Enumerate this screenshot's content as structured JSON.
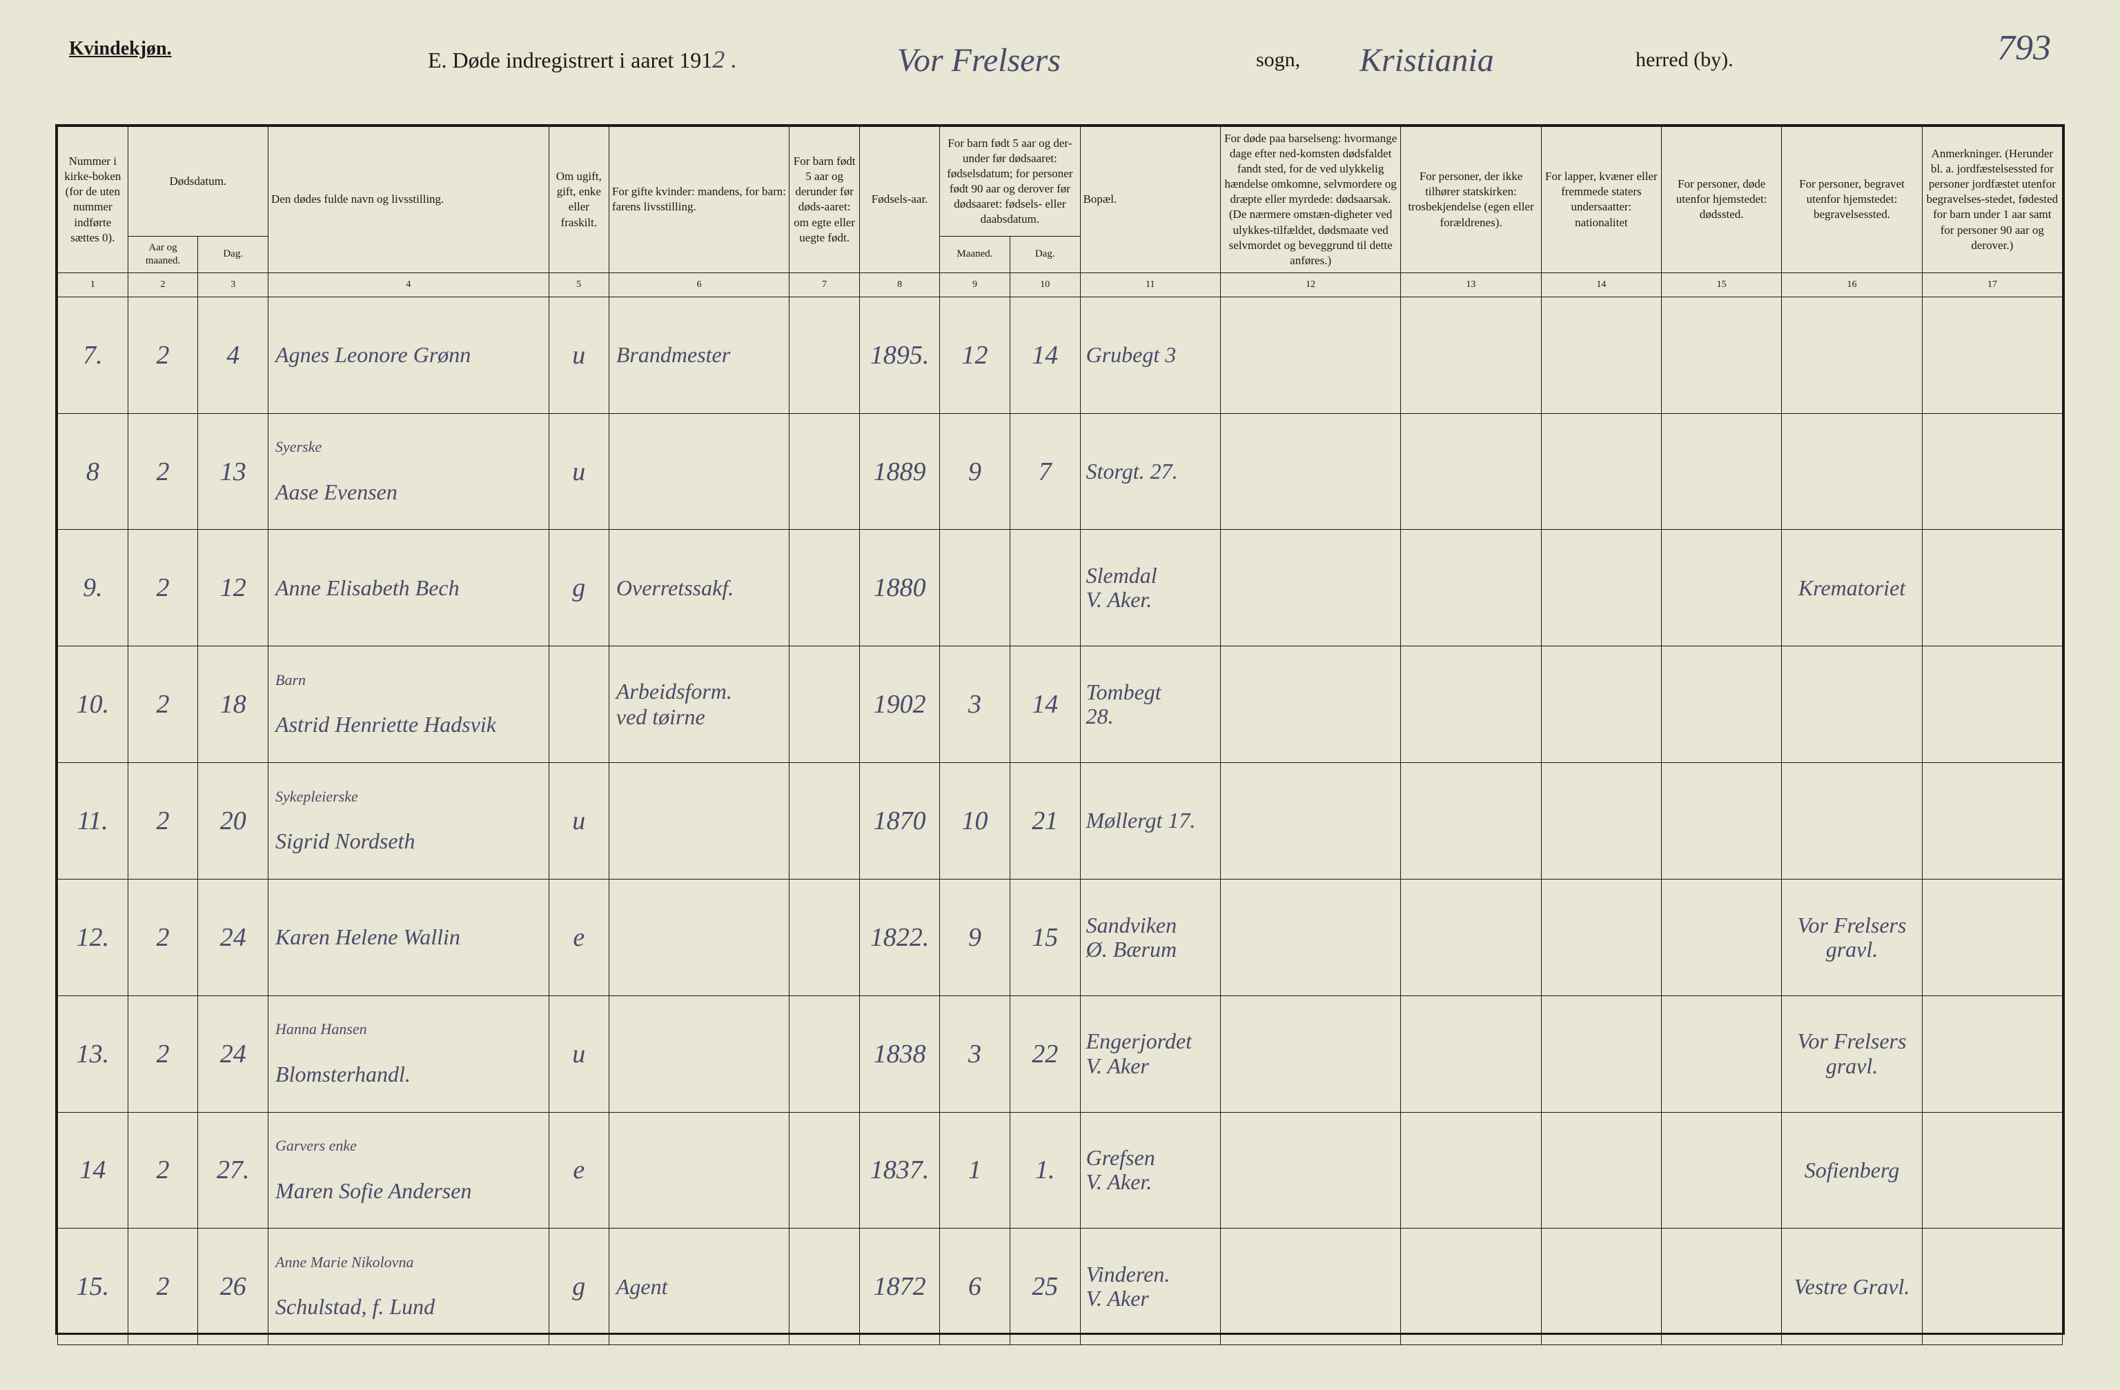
{
  "header": {
    "gender_label": "Kvindekjøn.",
    "title_prefix": "E.  Døde indregistrert i aaret 191",
    "year_suffix": "2 .",
    "sogn": "Vor Frelsers",
    "sogn_label": "sogn,",
    "herred": "Kristiania",
    "herred_label": "herred (by).",
    "page_number": "793"
  },
  "columns": {
    "num": "Nummer i kirke-boken (for de uten nummer indførte sættes 0).",
    "date": "Dødsdatum.",
    "date_year": "Aar og maaned.",
    "date_day": "Dag.",
    "name": "Den dødes fulde navn og livsstilling.",
    "marital": "Om ugift, gift, enke eller fraskilt.",
    "spouse": "For gifte kvinder: mandens, for barn: farens livsstilling.",
    "under5": "For barn født 5 aar og derunder før døds-aaret: om egte eller uegte født.",
    "birthyear": "Fødsels-aar.",
    "age": "For barn født 5 aar og der-under før dødsaaret: fødselsdatum; for personer født 90 aar og derover før dødsaaret: fødsels- eller daabsdatum.",
    "age_month": "Maaned.",
    "age_day": "Dag.",
    "residence": "Bopæl.",
    "cause": "For døde paa barselseng: hvormange dage efter ned-komsten dødsfaldet fandt sted, for de ved ulykkelig hændelse omkomne, selvmordere og dræpte eller myrdede: dødsaarsak. (De nærmere omstæn-digheter ved ulykkes-tilfældet, dødsmaate ved selvmordet og beveggrund til dette anføres.)",
    "church": "For personer, der ikke tilhører statskirken: trosbekjendelse (egen eller forældrenes).",
    "nationality": "For lapper, kvæner eller fremmede staters undersaatter: nationalitet",
    "deathplace": "For personer, døde utenfor hjemstedet: dødssted.",
    "burialplace": "For personer, begravet utenfor hjemstedet: begravelsessted.",
    "remarks": "Anmerkninger. (Herunder bl. a. jordfæstelsessted for personer jordfæstet utenfor begravelses-stedet, fødested for barn under 1 aar samt for personer 90 aar og derover.)"
  },
  "column_numbers": [
    "1",
    "2",
    "3",
    "4",
    "5",
    "6",
    "7",
    "8",
    "9",
    "10",
    "11",
    "12",
    "13",
    "14",
    "15",
    "16",
    "17"
  ],
  "rows": [
    {
      "num": "7.",
      "year": "2",
      "day": "4",
      "name": "Agnes Leonore Grønn",
      "name_sub": "",
      "marital": "u",
      "spouse": "Brandmester",
      "under5": "",
      "birthyear": "1895.",
      "age_month": "12",
      "age_day": "14",
      "residence": "Grubegt 3",
      "cause": "",
      "church": "",
      "nationality": "",
      "deathplace": "",
      "burialplace": "",
      "remarks": ""
    },
    {
      "num": "8",
      "year": "2",
      "day": "13",
      "name": "Syerske\nAase Evensen",
      "name_sub": "",
      "marital": "u",
      "spouse": "",
      "under5": "",
      "birthyear": "1889",
      "age_month": "9",
      "age_day": "7",
      "residence": "Storgt. 27.",
      "cause": "",
      "church": "",
      "nationality": "",
      "deathplace": "",
      "burialplace": "",
      "remarks": ""
    },
    {
      "num": "9.",
      "year": "2",
      "day": "12",
      "name": "Anne Elisabeth Bech",
      "name_sub": "",
      "marital": "g",
      "spouse": "Overretssakf.",
      "under5": "",
      "birthyear": "1880",
      "age_month": "",
      "age_day": "",
      "residence": "Slemdal\nV. Aker.",
      "cause": "",
      "church": "",
      "nationality": "",
      "deathplace": "",
      "burialplace": "Krematoriet",
      "remarks": ""
    },
    {
      "num": "10.",
      "year": "2",
      "day": "18",
      "name": "Barn\nAstrid Henriette Hadsvik",
      "name_sub": "",
      "marital": "",
      "spouse": "Arbeidsform.\nved tøirne",
      "under5": "",
      "birthyear": "1902",
      "age_month": "3",
      "age_day": "14",
      "residence": "Tombegt\n28.",
      "cause": "",
      "church": "",
      "nationality": "",
      "deathplace": "",
      "burialplace": "",
      "remarks": ""
    },
    {
      "num": "11.",
      "year": "2",
      "day": "20",
      "name": "Sykepleierske\nSigrid Nordseth",
      "name_sub": "",
      "marital": "u",
      "spouse": "",
      "under5": "",
      "birthyear": "1870",
      "age_month": "10",
      "age_day": "21",
      "residence": "Møllergt 17.",
      "cause": "",
      "church": "",
      "nationality": "",
      "deathplace": "",
      "burialplace": "",
      "remarks": ""
    },
    {
      "num": "12.",
      "year": "2",
      "day": "24",
      "name": "Karen Helene Wallin",
      "name_sub": "",
      "marital": "e",
      "spouse": "",
      "under5": "",
      "birthyear": "1822.",
      "age_month": "9",
      "age_day": "15",
      "residence": "Sandviken\nØ. Bærum",
      "cause": "",
      "church": "",
      "nationality": "",
      "deathplace": "",
      "burialplace": "Vor Frelsers\ngravl.",
      "remarks": ""
    },
    {
      "num": "13.",
      "year": "2",
      "day": "24",
      "name": "Hanna Hansen\nBlomsterhandl.",
      "name_sub": "",
      "marital": "u",
      "spouse": "",
      "under5": "",
      "birthyear": "1838",
      "age_month": "3",
      "age_day": "22",
      "residence": "Engerjordet\nV. Aker",
      "cause": "",
      "church": "",
      "nationality": "",
      "deathplace": "",
      "burialplace": "Vor Frelsers\ngravl.",
      "remarks": ""
    },
    {
      "num": "14",
      "year": "2",
      "day": "27.",
      "name": "Garvers enke\nMaren Sofie Andersen",
      "name_sub": "",
      "marital": "e",
      "spouse": "",
      "under5": "",
      "birthyear": "1837.",
      "age_month": "1",
      "age_day": "1.",
      "residence": "Grefsen\nV. Aker.",
      "cause": "",
      "church": "",
      "nationality": "",
      "deathplace": "",
      "burialplace": "Sofienberg",
      "remarks": ""
    },
    {
      "num": "15.",
      "year": "2",
      "day": "26",
      "name": "Anne Marie Nikolovna\nSchulstad, f. Lund",
      "name_sub": "",
      "marital": "g",
      "spouse": "Agent",
      "under5": "",
      "birthyear": "1872",
      "age_month": "6",
      "age_day": "25",
      "residence": "Vinderen.\nV. Aker",
      "cause": "",
      "church": "",
      "nationality": "",
      "deathplace": "",
      "burialplace": "Vestre Gravl.",
      "remarks": ""
    }
  ],
  "styling": {
    "page_bg": "#e8e6d4",
    "border_color": "#1a1a1a",
    "print_text_color": "#1a1a1a",
    "handwriting_color": "#4a4a6a",
    "print_font": "Georgia, Times New Roman, serif",
    "handwriting_font": "Brush Script MT, cursive",
    "header_fontsize": 28,
    "title_fontsize": 32,
    "handwriting_fontsize": 38,
    "column_header_fontsize": 17
  }
}
